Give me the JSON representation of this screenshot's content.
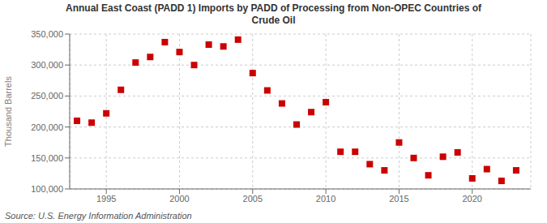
{
  "chart_data": {
    "type": "scatter",
    "title": "Annual East Coast (PADD 1) Imports by PADD of Processing from Non-OPEC Countries of\nCrude Oil",
    "ylabel": "Thousand Barrels",
    "annotations": [
      "Source: U.S. Energy Information Administration"
    ],
    "x": [
      1993,
      1994,
      1995,
      1996,
      1997,
      1998,
      1999,
      2000,
      2001,
      2002,
      2003,
      2004,
      2005,
      2006,
      2007,
      2008,
      2009,
      2010,
      2011,
      2012,
      2013,
      2014,
      2015,
      2016,
      2017,
      2018,
      2019,
      2020,
      2021,
      2022,
      2023
    ],
    "values": [
      210000,
      207000,
      222000,
      260000,
      304000,
      313000,
      337000,
      321000,
      300000,
      333000,
      330000,
      341000,
      287000,
      259000,
      238000,
      204000,
      224000,
      240000,
      160000,
      160000,
      140000,
      130000,
      175000,
      150000,
      122000,
      152000,
      159000,
      117000,
      132000,
      113000,
      130000
    ],
    "color": "#cc0000",
    "marker": "square",
    "xlim": [
      1992.5,
      2024
    ],
    "xticks": [
      1995,
      2000,
      2005,
      2010,
      2015,
      2020
    ],
    "ylim": [
      100000,
      350000
    ],
    "yticks": [
      {
        "value": 100000,
        "label": "100,000"
      },
      {
        "value": 150000,
        "label": "150,000"
      },
      {
        "value": 200000,
        "label": "200,000"
      },
      {
        "value": 250000,
        "label": "250,000"
      },
      {
        "value": 300000,
        "label": "300,000"
      },
      {
        "value": 350000,
        "label": "350,000"
      }
    ],
    "grid": true
  }
}
